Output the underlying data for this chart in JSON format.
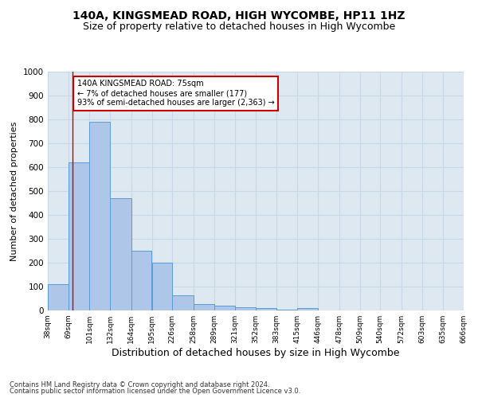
{
  "title1": "140A, KINGSMEAD ROAD, HIGH WYCOMBE, HP11 1HZ",
  "title2": "Size of property relative to detached houses in High Wycombe",
  "xlabel": "Distribution of detached houses by size in High Wycombe",
  "ylabel": "Number of detached properties",
  "footer1": "Contains HM Land Registry data © Crown copyright and database right 2024.",
  "footer2": "Contains public sector information licensed under the Open Government Licence v3.0.",
  "annotation_line1": "140A KINGSMEAD ROAD: 75sqm",
  "annotation_line2": "← 7% of detached houses are smaller (177)",
  "annotation_line3": "93% of semi-detached houses are larger (2,363) →",
  "bar_left_edges": [
    38,
    69,
    101,
    132,
    164,
    195,
    226,
    258,
    289,
    321,
    352,
    383,
    415,
    446,
    478,
    509,
    540,
    572,
    603,
    635
  ],
  "bar_widths": [
    31,
    32,
    31,
    32,
    31,
    31,
    32,
    31,
    32,
    31,
    31,
    32,
    31,
    32,
    31,
    31,
    32,
    31,
    32,
    31
  ],
  "bar_heights": [
    110,
    620,
    790,
    470,
    250,
    200,
    63,
    27,
    20,
    15,
    10,
    5,
    10,
    0,
    0,
    0,
    0,
    0,
    0,
    0
  ],
  "bar_color": "#aec6e8",
  "bar_edge_color": "#5b9bd5",
  "vline_x": 75,
  "vline_color": "#cc0000",
  "annotation_box_color": "#cc0000",
  "xlim": [
    38,
    666
  ],
  "ylim": [
    0,
    1000
  ],
  "yticks": [
    0,
    100,
    200,
    300,
    400,
    500,
    600,
    700,
    800,
    900,
    1000
  ],
  "xtick_labels": [
    "38sqm",
    "69sqm",
    "101sqm",
    "132sqm",
    "164sqm",
    "195sqm",
    "226sqm",
    "258sqm",
    "289sqm",
    "321sqm",
    "352sqm",
    "383sqm",
    "415sqm",
    "446sqm",
    "478sqm",
    "509sqm",
    "540sqm",
    "572sqm",
    "603sqm",
    "635sqm",
    "666sqm"
  ],
  "xtick_positions": [
    38,
    69,
    101,
    132,
    164,
    195,
    226,
    258,
    289,
    321,
    352,
    383,
    415,
    446,
    478,
    509,
    540,
    572,
    603,
    635,
    666
  ],
  "grid_color": "#c8d8e8",
  "bg_color": "#dde8f0",
  "title1_fontsize": 10,
  "title2_fontsize": 9,
  "ylabel_fontsize": 8,
  "xlabel_fontsize": 9,
  "footer_fontsize": 6
}
